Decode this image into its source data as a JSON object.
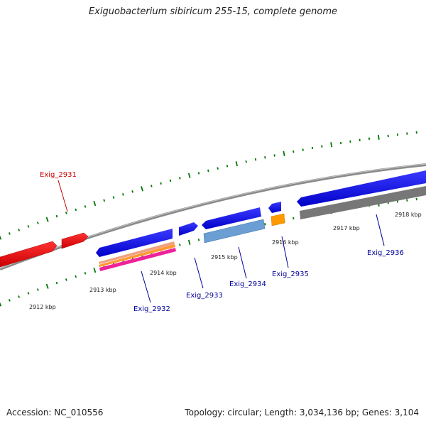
{
  "title": "Exiguobacterium sibiricum 255-15, complete genome",
  "footer": {
    "accession": "Accession: NC_010556",
    "summary": "Topology: circular; Length: 3,034,136 bp; Genes: 3,104"
  },
  "colors": {
    "forward_cds": "#1010ee",
    "reverse_cds": "#6b9fd4",
    "red_gene": "#ee1111",
    "orange_gene": "#ff9900",
    "grey_gene": "#777777",
    "backbone": "#888888",
    "tick": "#007700",
    "label_blue": "#000099",
    "label_red": "#cc0000"
  },
  "ticks": [
    "2912 kbp",
    "2913 kbp",
    "2914 kbp",
    "2915 kbp",
    "2916 kbp",
    "2917 kbp",
    "2918 kbp"
  ],
  "genes": [
    {
      "name": "Exig_2931",
      "color": "red"
    },
    {
      "name": "Exig_2932",
      "color": "blue"
    },
    {
      "name": "Exig_2933",
      "color": "blue"
    },
    {
      "name": "Exig_2934",
      "color": "blue"
    },
    {
      "name": "Exig_2935",
      "color": "blue"
    },
    {
      "name": "Exig_2936",
      "color": "blue"
    }
  ]
}
